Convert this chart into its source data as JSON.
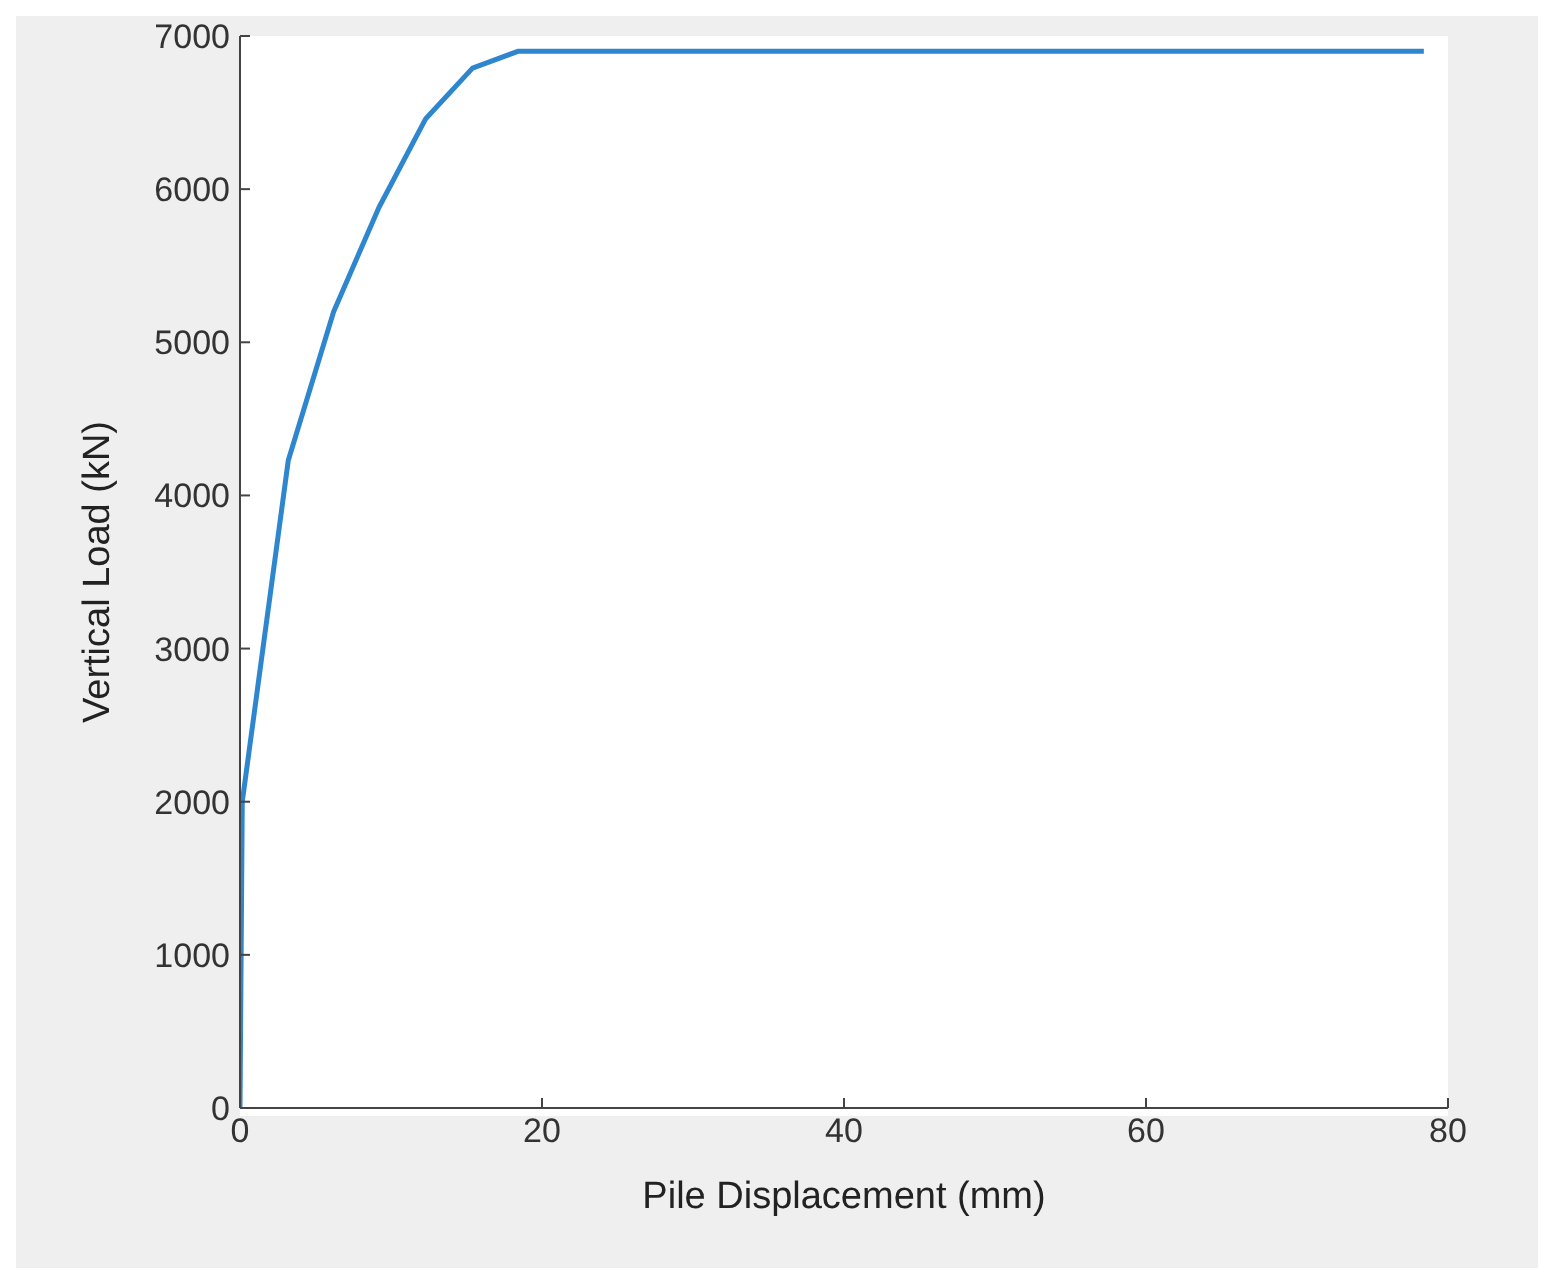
{
  "chart_data": {
    "type": "line",
    "xlabel": "Pile Displacement (mm)",
    "ylabel": "Vertical Load (kN)",
    "x": [
      0,
      0.15,
      3.2,
      6.2,
      9.2,
      12.3,
      15.4,
      18.4,
      78.4
    ],
    "series": [
      {
        "color": "#2e86cf",
        "values": [
          0,
          2000,
          4230,
          5200,
          5880,
          6460,
          6790,
          6900,
          6900
        ]
      }
    ],
    "xlim": [
      0,
      80
    ],
    "xticks": [
      0,
      20,
      40,
      60,
      80
    ],
    "ylim": [
      0,
      7000
    ],
    "yticks": [
      0,
      1000,
      2000,
      3000,
      4000,
      5000,
      6000,
      7000
    ],
    "grid": false,
    "legend": false,
    "marker": "none",
    "line_style": "solid"
  }
}
